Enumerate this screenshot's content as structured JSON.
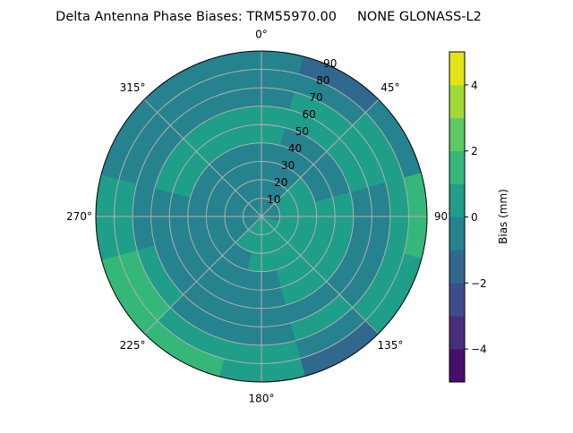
{
  "chart_data": {
    "type": "polar-contour",
    "title": "Delta Antenna Phase Biases: TRM55970.00     NONE GLONASS-L2",
    "angular_ticks": [
      "0°",
      "45°",
      "90°",
      "135°",
      "180°",
      "225°",
      "270°",
      "315°"
    ],
    "angular_tick_values": [
      0,
      45,
      90,
      135,
      180,
      225,
      270,
      315
    ],
    "radial_ticks": [
      "10",
      "20",
      "30",
      "40",
      "50",
      "60",
      "70",
      "80",
      "90"
    ],
    "radial_tick_values": [
      10,
      20,
      30,
      40,
      50,
      60,
      70,
      80,
      90
    ],
    "rlim": [
      0,
      90
    ],
    "theta_zero": "north",
    "theta_direction": "clockwise",
    "grid": true,
    "colorbar": {
      "label": "Bias (mm)",
      "levels": [
        -5,
        -4,
        -3,
        -2,
        -1,
        0,
        1,
        2,
        3,
        4,
        5
      ],
      "ticks": [
        "4",
        "2",
        "0",
        "−2",
        "−4"
      ],
      "tick_values": [
        4,
        2,
        0,
        -2,
        -4
      ],
      "colormap": "viridis",
      "colors": [
        "#46106a",
        "#472e7c",
        "#3e4c8a",
        "#31688e",
        "#26828e",
        "#1f9e89",
        "#35b779",
        "#5ec962",
        "#a0da39",
        "#e2e418"
      ]
    },
    "azimuths": [
      0,
      30,
      60,
      90,
      120,
      150,
      180,
      210,
      240,
      270,
      300,
      330
    ],
    "ring_edges": [
      0,
      10,
      20,
      30,
      40,
      50,
      60,
      70,
      80,
      90
    ],
    "values_by_azimuth": [
      [
        -0.5,
        -0.5,
        -0.5,
        -0.5,
        0.5,
        0.5,
        -0.5,
        -0.5,
        -0.5
      ],
      [
        -0.5,
        -0.5,
        -0.5,
        -0.5,
        -0.5,
        0.5,
        0.5,
        -0.5,
        -1.5
      ],
      [
        -0.5,
        0.5,
        0.5,
        -0.5,
        -0.5,
        0.5,
        0.5,
        0.5,
        -0.5
      ],
      [
        -0.5,
        0.5,
        0.5,
        0.5,
        0.5,
        -0.5,
        -0.5,
        0.5,
        1.5
      ],
      [
        0.5,
        0.5,
        0.5,
        0.5,
        0.5,
        -0.5,
        -0.5,
        0.5,
        0.5
      ],
      [
        0.5,
        0.5,
        0.5,
        0.5,
        0.5,
        -0.5,
        0.5,
        -0.5,
        -1.5
      ],
      [
        0.5,
        0.5,
        0.5,
        -0.5,
        -0.5,
        -0.5,
        -0.5,
        0.5,
        0.5
      ],
      [
        0.5,
        0.5,
        -0.5,
        -0.5,
        -0.5,
        -0.5,
        -0.5,
        0.5,
        1.5
      ],
      [
        -0.5,
        -0.5,
        -0.5,
        -0.5,
        -0.5,
        -0.5,
        0.5,
        1.5,
        1.5
      ],
      [
        -0.5,
        -0.5,
        -0.5,
        -0.5,
        -0.5,
        -0.5,
        -0.5,
        0.5,
        0.5
      ],
      [
        -0.5,
        -0.5,
        -0.5,
        -0.5,
        0.5,
        0.5,
        -0.5,
        -0.5,
        -0.5
      ],
      [
        -0.5,
        -0.5,
        -0.5,
        -0.5,
        0.5,
        0.5,
        -0.5,
        -0.5,
        -0.5
      ]
    ]
  }
}
